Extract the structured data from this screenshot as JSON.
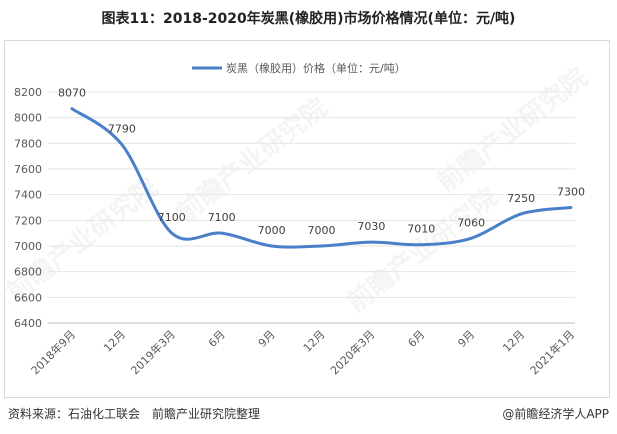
{
  "title": "图表11：2018-2020年炭黑(橡胶用)市场价格情况(单位：元/吨)",
  "source": "资料来源：石油化工联会　前瞻产业研究院整理",
  "brand": "@前瞻经济学人APP",
  "watermark": "前瞻产业研究院",
  "colors": {
    "line": "#4a7fc9",
    "grid": "#e6e6e6",
    "border": "#d9d9d9"
  },
  "chart_data": {
    "type": "line",
    "categories": [
      "2018年9月",
      "12月",
      "2019年3月",
      "6月",
      "9月",
      "12月",
      "2020年3月",
      "6月",
      "9月",
      "12月",
      "2021年1月"
    ],
    "series": [
      {
        "name": "炭黑（橡胶用）价格（单位：元/吨）",
        "values": [
          8070,
          7790,
          7100,
          7100,
          7000,
          7000,
          7030,
          7010,
          7060,
          7250,
          7300
        ]
      }
    ],
    "ylim": [
      6400,
      8200
    ],
    "yticks": [
      6400,
      6600,
      6800,
      7000,
      7200,
      7400,
      7600,
      7800,
      8000,
      8200
    ],
    "grid": true,
    "legend_position": "top"
  }
}
